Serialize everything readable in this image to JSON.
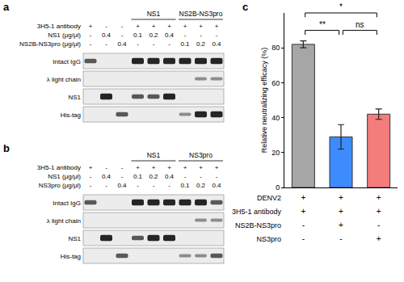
{
  "panels": [
    {
      "panel": "a",
      "group_labels": [
        null,
        null,
        null,
        "NS1",
        "NS1",
        "NS1",
        "NS2B-NS3pro",
        "NS2B-NS3pro",
        "NS2B-NS3pro"
      ],
      "conditions": [
        {
          "label": "3H5-1 antibody",
          "values": [
            "+",
            "-",
            "-",
            "+",
            "+",
            "+",
            "+",
            "+",
            "+"
          ]
        },
        {
          "label": "NS1 (μg/μl)",
          "values": [
            "-",
            "0.4",
            "-",
            "0.1",
            "0.2",
            "0.4",
            "-",
            "-",
            "-"
          ]
        },
        {
          "label": "NS2B-NS3pro (μg/μl)",
          "values": [
            "-",
            "-",
            "0.4",
            "-",
            "-",
            "-",
            "0.1",
            "0.2",
            "0.4"
          ]
        }
      ],
      "blots": [
        {
          "label": "Intact IgG",
          "bands": [
            2,
            0,
            0,
            3,
            3,
            3,
            3,
            3,
            3
          ]
        },
        {
          "label": "λ light chain",
          "bands": [
            0,
            0,
            0,
            0,
            0,
            0,
            0,
            1,
            1
          ]
        },
        {
          "label": "NS1",
          "bands": [
            0,
            3,
            0,
            2,
            2,
            3,
            0,
            0,
            0
          ]
        },
        {
          "label": "His-tag",
          "bands": [
            0,
            0,
            2,
            0,
            0,
            0,
            1,
            3,
            3
          ]
        }
      ]
    },
    {
      "panel": "b",
      "group_labels": [
        null,
        null,
        null,
        "NS1",
        "NS1",
        "NS1",
        "NS3pro",
        "NS3pro",
        "NS3pro"
      ],
      "conditions": [
        {
          "label": "3H5-1 antibody",
          "values": [
            "+",
            "-",
            "-",
            "+",
            "+",
            "+",
            "+",
            "+",
            "+"
          ]
        },
        {
          "label": "NS1 (μg/μl)",
          "values": [
            "-",
            "0.4",
            "-",
            "0.1",
            "0.2",
            "0.4",
            "-",
            "-",
            "-"
          ]
        },
        {
          "label": "NS3pro (μg/μl)",
          "values": [
            "-",
            "-",
            "0.4",
            "-",
            "-",
            "-",
            "0.1",
            "0.2",
            "0.4"
          ]
        }
      ],
      "blots": [
        {
          "label": "Intact IgG",
          "bands": [
            2,
            0,
            0,
            3,
            3,
            3,
            3,
            3,
            2
          ]
        },
        {
          "label": "λ light chain",
          "bands": [
            0,
            0,
            0,
            0,
            0,
            0,
            0,
            1,
            1
          ]
        },
        {
          "label": "NS1",
          "bands": [
            0,
            3,
            0,
            2,
            3,
            3,
            0,
            0,
            0
          ]
        },
        {
          "label": "His-tag",
          "bands": [
            0,
            0,
            2,
            0,
            0,
            0,
            1,
            1,
            2
          ]
        }
      ]
    }
  ],
  "chart_data": {
    "type": "bar",
    "panel": "c",
    "categories": [
      null,
      null,
      null
    ],
    "values": [
      82,
      29,
      42
    ],
    "errors": [
      2,
      7,
      3
    ],
    "colors": [
      "#a6a6a6",
      "#3d8bfd",
      "#f47c7c"
    ],
    "ylabel": "Relative neutralizing efficacy (%)",
    "ylim": [
      0,
      100
    ],
    "yticks": [
      0,
      20,
      40,
      60,
      80
    ],
    "grid": false,
    "tick_labels": "y",
    "significance": [
      {
        "text": "**",
        "bars": [
          0,
          1
        ]
      },
      {
        "text": "*",
        "bars": [
          0,
          2
        ]
      },
      {
        "text": "ns",
        "bars": [
          1,
          2
        ]
      }
    ],
    "conditions": [
      {
        "label": "DENV2",
        "values": [
          "+",
          "+",
          "+"
        ]
      },
      {
        "label": "3H5-1 antibody",
        "values": [
          "+",
          "+",
          "+"
        ]
      },
      {
        "label": "NS2B-NS3pro",
        "values": [
          "-",
          "+",
          "-"
        ]
      },
      {
        "label": "NS3pro",
        "values": [
          "-",
          "-",
          "+"
        ]
      }
    ]
  }
}
